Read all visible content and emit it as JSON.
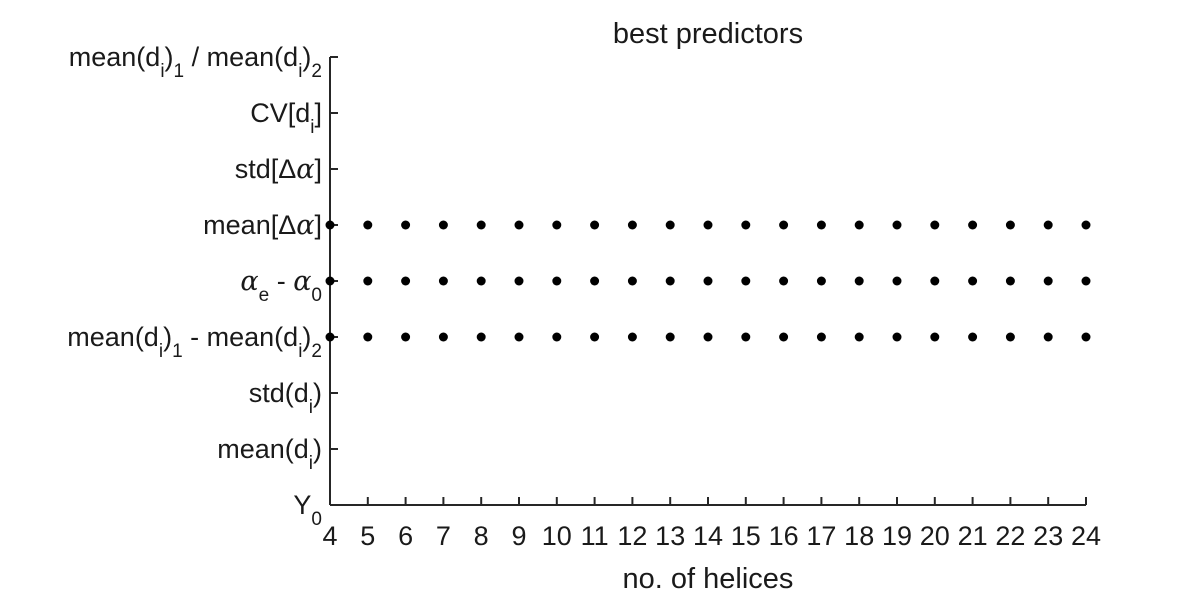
{
  "chart_data": {
    "type": "scatter",
    "title": "best predictors",
    "xlabel": "no. of helices",
    "ylabel": "",
    "xlim": [
      4,
      24
    ],
    "x_ticks": [
      "4",
      "5",
      "6",
      "7",
      "8",
      "9",
      "10",
      "11",
      "12",
      "13",
      "14",
      "15",
      "16",
      "17",
      "18",
      "19",
      "20",
      "21",
      "22",
      "23",
      "24"
    ],
    "y_categories": [
      {
        "parts": [
          {
            "t": "Y"
          },
          {
            "t": "0",
            "sub": true
          }
        ]
      },
      {
        "parts": [
          {
            "t": "mean(d"
          },
          {
            "t": "i",
            "sub": true
          },
          {
            "t": ")"
          }
        ]
      },
      {
        "parts": [
          {
            "t": "std(d"
          },
          {
            "t": "i",
            "sub": true
          },
          {
            "t": ")"
          }
        ]
      },
      {
        "parts": [
          {
            "t": "mean(d"
          },
          {
            "t": "i",
            "sub": true
          },
          {
            "t": ")"
          },
          {
            "t": "1",
            "sub": true
          },
          {
            "t": " - mean(d"
          },
          {
            "t": "i",
            "sub": true
          },
          {
            "t": ")"
          },
          {
            "t": "2",
            "sub": true
          }
        ]
      },
      {
        "parts": [
          {
            "t": "α",
            "greek": true
          },
          {
            "t": "e",
            "sub": true
          },
          {
            "t": " - "
          },
          {
            "t": "α",
            "greek": true
          },
          {
            "t": "0",
            "sub": true
          }
        ]
      },
      {
        "parts": [
          {
            "t": "mean[Δ"
          },
          {
            "t": "α",
            "greek": true
          },
          {
            "t": "]"
          }
        ]
      },
      {
        "parts": [
          {
            "t": "std[Δ"
          },
          {
            "t": "α",
            "greek": true
          },
          {
            "t": "]"
          }
        ]
      },
      {
        "parts": [
          {
            "t": "CV[d"
          },
          {
            "t": "i",
            "sub": true
          },
          {
            "t": "]"
          }
        ]
      },
      {
        "parts": [
          {
            "t": "mean(d"
          },
          {
            "t": "i",
            "sub": true
          },
          {
            "t": ")"
          },
          {
            "t": "1",
            "sub": true
          },
          {
            "t": " / mean(d"
          },
          {
            "t": "i",
            "sub": true
          },
          {
            "t": ")"
          },
          {
            "t": "2",
            "sub": true
          }
        ]
      }
    ],
    "series": [
      {
        "y_category_index": 3,
        "x": [
          4,
          5,
          6,
          7,
          8,
          9,
          10,
          11,
          12,
          13,
          14,
          15,
          16,
          17,
          18,
          19,
          20,
          21,
          22,
          23,
          24
        ]
      },
      {
        "y_category_index": 4,
        "x": [
          4,
          5,
          6,
          7,
          8,
          9,
          10,
          11,
          12,
          13,
          14,
          15,
          16,
          17,
          18,
          19,
          20,
          21,
          22,
          23,
          24
        ]
      },
      {
        "y_category_index": 5,
        "x": [
          4,
          5,
          6,
          7,
          8,
          9,
          10,
          11,
          12,
          13,
          14,
          15,
          16,
          17,
          18,
          19,
          20,
          21,
          22,
          23,
          24
        ]
      }
    ],
    "marker_color": "#000000",
    "axis_color": "#262626",
    "grid": false
  }
}
